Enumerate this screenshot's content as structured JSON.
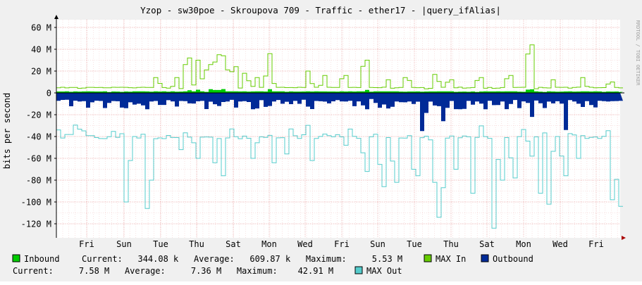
{
  "chart_data": {
    "type": "area",
    "title": "Yzop - sw30poe - Skroupova 709 - Traffic - ether17 - |query_ifAlias|",
    "ylabel": "bits per second",
    "ylim": [
      -130000000,
      65000000
    ],
    "yticks": [
      60000000,
      40000000,
      20000000,
      0,
      -20000000,
      -40000000,
      -60000000,
      -80000000,
      -100000000,
      -120000000
    ],
    "ytick_labels": [
      "60 M",
      "40 M",
      "20 M",
      "0",
      "-20 M",
      "-40 M",
      "-60 M",
      "-80 M",
      "-100 M",
      "-120 M"
    ],
    "xticks": [
      "Fri",
      "Sun",
      "Tue",
      "Thu",
      "Sat",
      "Mon",
      "Wed",
      "Fri",
      "Sun",
      "Tue",
      "Thu",
      "Sat",
      "Mon",
      "Wed",
      "Fri"
    ],
    "watermark": "RRDTOOL / TOBI OETIKER",
    "grid": true,
    "colors": {
      "inbound": "#00cc00",
      "max_in": "#66cc00",
      "outbound": "#002a97",
      "max_out": "#55cccc",
      "grid": "#e8a0a0",
      "axis": "#000000"
    },
    "series_meta": [
      {
        "key": "inbound",
        "name": "Inbound",
        "style": "area"
      },
      {
        "key": "max_in",
        "name": "MAX In",
        "style": "line"
      },
      {
        "key": "outbound",
        "name": "Outbound",
        "style": "area"
      },
      {
        "key": "max_out",
        "name": "MAX Out",
        "style": "line"
      }
    ]
  },
  "legend": {
    "inbound_label": "Inbound",
    "inbound_stats": "Current:   344.08 k   Average:   609.87 k   Maximum:     5.53 M",
    "max_in_label": "MAX In",
    "outbound_label": "Outbound",
    "outbound_stats": "Current:     7.58 M   Average:     7.36 M   Maximum:    42.91 M",
    "max_out_label": "MAX Out"
  }
}
